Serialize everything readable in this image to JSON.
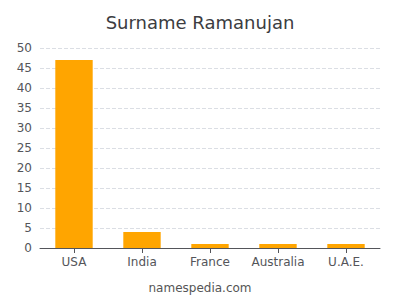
{
  "chart_data": {
    "type": "bar",
    "title": "Surname Ramanujan",
    "categories": [
      "USA",
      "India",
      "France",
      "Australia",
      "U.A.E."
    ],
    "values": [
      47,
      4,
      1,
      1,
      1
    ],
    "color": "#FFA500",
    "ylim": [
      0,
      50
    ],
    "yticks": [
      0,
      5,
      10,
      15,
      20,
      25,
      30,
      35,
      40,
      45,
      50
    ],
    "grid": true,
    "annotations": [
      "namespedia.com"
    ]
  }
}
